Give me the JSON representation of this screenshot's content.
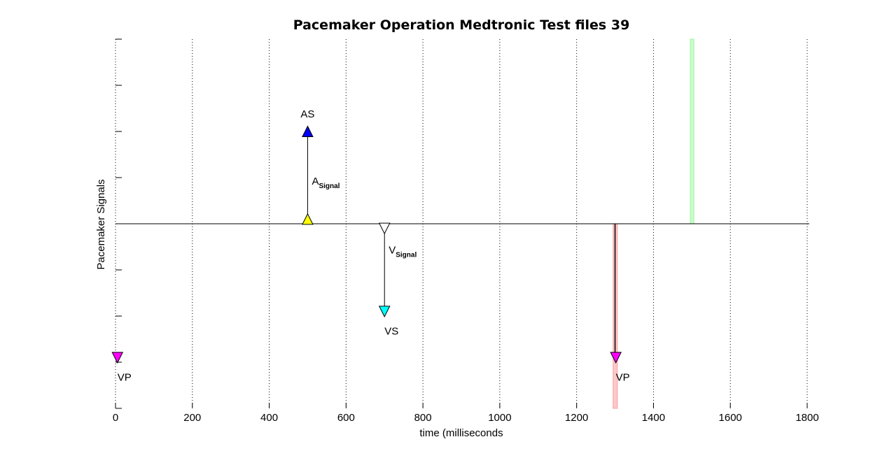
{
  "chart_data": {
    "type": "scatter",
    "title": "Pacemaker Operation Medtronic Test files 39",
    "xlabel": "time (milliseconds",
    "ylabel": "Pacemaker Signals",
    "xlim": [
      0,
      1800
    ],
    "ylim": [
      -4,
      4
    ],
    "x_ticks": [
      "0",
      "200",
      "400",
      "600",
      "800",
      "1000",
      "1200",
      "1400",
      "1600",
      "1800"
    ],
    "x_tick_values": [
      0,
      200,
      400,
      600,
      800,
      1000,
      1200,
      1400,
      1600,
      1800
    ],
    "y_tick_values": [
      -4,
      -3,
      -2,
      -1,
      0,
      1,
      2,
      3,
      4
    ],
    "grid": "vertical-dotted",
    "baseline_y": 0,
    "events": [
      {
        "label": "AS",
        "x": 500,
        "y": 2,
        "marker": "triangle-up",
        "color": "#0000ff"
      },
      {
        "label": "",
        "x": 500,
        "y": 0.1,
        "marker": "triangle-up",
        "color": "#ffff00"
      },
      {
        "label": "",
        "x": 700,
        "y": -0.1,
        "marker": "triangle-down",
        "color": "#ffffff"
      },
      {
        "label": "VS",
        "x": 700,
        "y": -1.9,
        "marker": "triangle-down",
        "color": "#00ffff"
      },
      {
        "label": "VP",
        "x": 5,
        "y": -2.9,
        "marker": "triangle-down",
        "color": "#ff00ff"
      },
      {
        "label": "VP",
        "x": 1302,
        "y": -2.9,
        "marker": "triangle-down",
        "color": "#ff00ff"
      }
    ],
    "arrows": [
      {
        "x": 500,
        "y_from": 0,
        "y_to": 2,
        "label_main": "A",
        "label_sub": "Signal"
      },
      {
        "x": 700,
        "y_from": 0,
        "y_to": -1.9,
        "label_main": "V",
        "label_sub": "Signal"
      }
    ],
    "shaded_bars": [
      {
        "x_start": 1295,
        "x_end": 1306,
        "y_from": -4,
        "y_to": 0,
        "color": "#ffc8c8"
      },
      {
        "x_start": 1496,
        "x_end": 1505,
        "y_from": 0,
        "y_to": 4,
        "color": "#c8ffc8"
      }
    ],
    "vp_line": {
      "x": 1300,
      "y_from": -4,
      "y_to": 0
    }
  }
}
